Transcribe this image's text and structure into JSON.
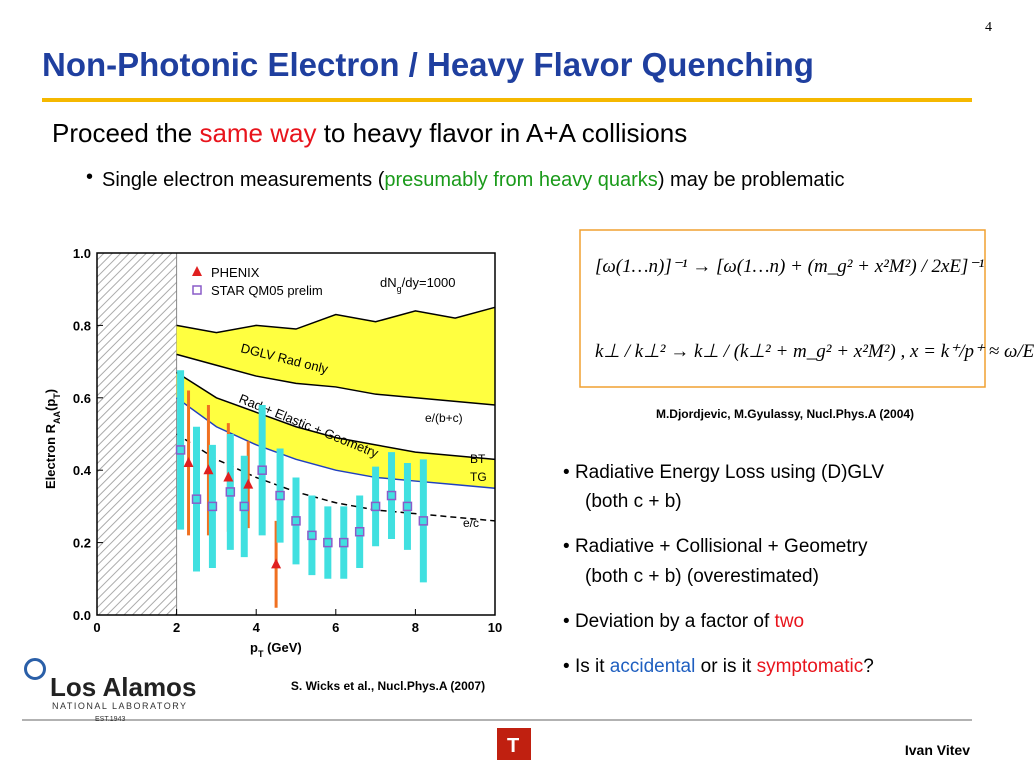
{
  "slide": {
    "page_number": "4",
    "title": "Non-Photonic Electron / Heavy Flavor Quenching",
    "heading": [
      {
        "text": "Proceed the ",
        "color": "#000000"
      },
      {
        "text": "same way",
        "color": "#e8141c"
      },
      {
        "text": " to heavy flavor in A+A collisions",
        "color": "#000000"
      }
    ],
    "sub_bullet": [
      {
        "text": "Single electron measurements (",
        "color": "#000000"
      },
      {
        "text": "presumably from heavy quarks",
        "color": "#1a9a1a"
      },
      {
        "text": ") may be problematic",
        "color": "#000000"
      }
    ],
    "equations": [
      "[ω(1…n)]⁻¹ → [ω(1…n) + (m_g² + x²M²) / 2xE]⁻¹",
      "k⊥ / k⊥² → k⊥ / (k⊥² + m_g² + x²M²) ,   x = k⁺/p⁺ ≈ ω/E"
    ],
    "citation_theory": "M.Djordjevic, M.Gyulassy, Nucl.Phys.A (2004)",
    "citation_plot": "S. Wicks et al., Nucl.Phys.A (2007)",
    "bullets": [
      [
        {
          "text": "Radiative Energy Loss using (D)GLV",
          "color": "#000000"
        }
      ],
      [
        {
          "text": "(both c + b)",
          "color": "#000000"
        }
      ],
      [
        {
          "text": "Radiative + Collisional + Geometry",
          "color": "#000000"
        }
      ],
      [
        {
          "text": "(both c + b) (overestimated)",
          "color": "#000000"
        }
      ],
      [
        {
          "text": "Deviation by a factor of ",
          "color": "#000000"
        },
        {
          "text": "two",
          "color": "#e8141c"
        }
      ],
      [
        {
          "text": "Is it ",
          "color": "#000000"
        },
        {
          "text": "accidental",
          "color": "#1f5fc0"
        },
        {
          "text": " or is it ",
          "color": "#000000"
        },
        {
          "text": "symptomatic",
          "color": "#e8141c"
        },
        {
          "text": "?",
          "color": "#000000"
        }
      ]
    ],
    "logo": {
      "name": "Los Alamos",
      "sub": "NATIONAL LABORATORY",
      "est": "EST.1943"
    },
    "author": "Ivan Vitev"
  },
  "chart_data": {
    "type": "scatter",
    "xlabel": [
      "p",
      "T",
      " (GeV)"
    ],
    "ylabel": [
      "Electron R",
      "AA",
      "(p",
      "T",
      ")"
    ],
    "annotation": [
      "dN",
      "g",
      "/dy=1000"
    ],
    "xlim": [
      0,
      10
    ],
    "ylim": [
      0,
      1
    ],
    "xticks": [
      0,
      2,
      4,
      6,
      8,
      10
    ],
    "yticks": [
      {
        "value": 0,
        "label": "0.0"
      },
      {
        "value": 0.2,
        "label": "0.2"
      },
      {
        "value": 0.4,
        "label": "0.4"
      },
      {
        "value": 0.6,
        "label": "0.6"
      },
      {
        "value": 0.8,
        "label": "0.8"
      },
      {
        "value": 1,
        "label": "1.0"
      }
    ],
    "series": [
      {
        "name": "PHENIX",
        "marker": "triangle",
        "color": "#e02020",
        "error_color": "#f07020",
        "x": [
          2.3,
          2.8,
          3.3,
          3.8,
          4.5
        ],
        "values": [
          0.42,
          0.4,
          0.38,
          0.36,
          0.14
        ],
        "errors": [
          0.2,
          0.18,
          0.15,
          0.12,
          0.12
        ]
      },
      {
        "name": "STAR QM05 prelim",
        "marker": "square",
        "color": "#8a5cc8",
        "error_color": "#40e0e0",
        "x": [
          2.1,
          2.5,
          2.9,
          3.35,
          3.7,
          4.15,
          4.6,
          5.0,
          5.4,
          5.8,
          6.2,
          6.6,
          7.0,
          7.4,
          7.8,
          8.2
        ],
        "values": [
          0.456,
          0.32,
          0.3,
          0.34,
          0.3,
          0.4,
          0.33,
          0.26,
          0.22,
          0.2,
          0.2,
          0.23,
          0.3,
          0.33,
          0.3,
          0.26
        ],
        "errors": [
          0.22,
          0.2,
          0.17,
          0.16,
          0.14,
          0.18,
          0.13,
          0.12,
          0.11,
          0.1,
          0.1,
          0.1,
          0.11,
          0.12,
          0.12,
          0.17
        ]
      }
    ],
    "curve_x": [
      2,
      3,
      4,
      5,
      6,
      7,
      8,
      9,
      10
    ],
    "bands": [
      {
        "label": "DGLV Rad only",
        "color": "#ffff40",
        "upper": [
          0.8,
          0.78,
          0.8,
          0.79,
          0.83,
          0.81,
          0.84,
          0.82,
          0.85
        ],
        "lower": [
          0.72,
          0.69,
          0.66,
          0.64,
          0.63,
          0.61,
          0.6,
          0.59,
          0.58
        ]
      },
      {
        "label": "Rad + Elastic + Geometry",
        "color": "#ffff40",
        "upper": [
          0.67,
          0.6,
          0.56,
          0.52,
          0.49,
          0.47,
          0.45,
          0.44,
          0.43
        ],
        "lower": [
          0.6,
          0.52,
          0.47,
          0.43,
          0.4,
          0.38,
          0.37,
          0.36,
          0.35
        ]
      }
    ],
    "lines": [
      {
        "label": "e/c",
        "dashed": true,
        "values": [
          0.5,
          0.43,
          0.38,
          0.34,
          0.31,
          0.29,
          0.28,
          0.27,
          0.26
        ]
      }
    ],
    "labels": [
      "e/(b+c)",
      "BT",
      "TG"
    ],
    "legend": "upper left"
  }
}
